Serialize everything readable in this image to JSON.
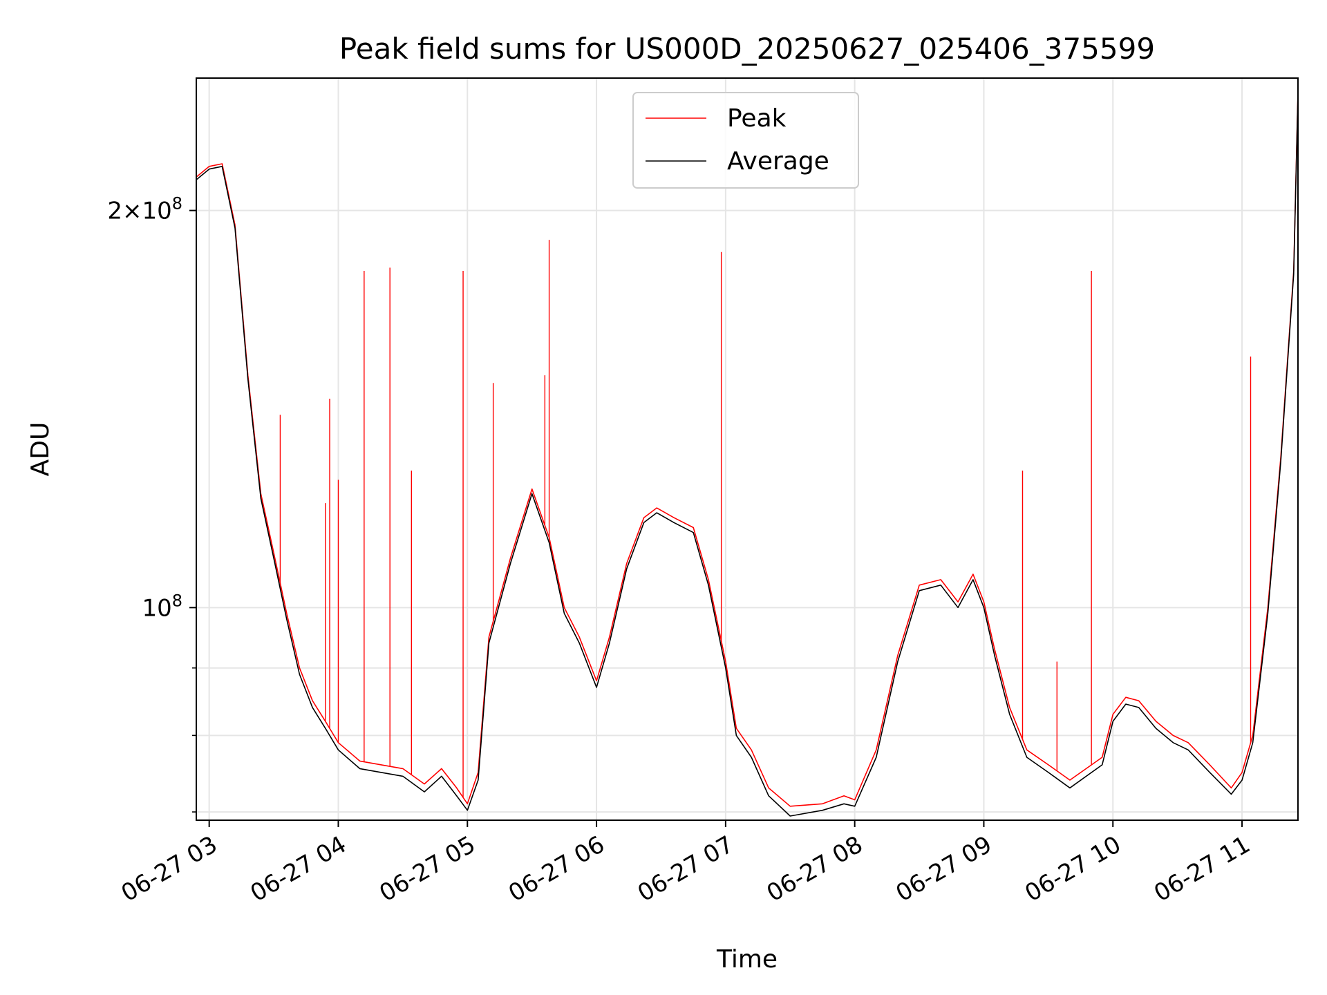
{
  "chart_data": {
    "type": "line",
    "title": "Peak field sums for US000D_20250627_025406_375599",
    "xlabel": "Time",
    "ylabel": "ADU",
    "x_scale": "time",
    "y_scale": "log",
    "xlim": [
      "06-27 02:54",
      "06-27 11:26"
    ],
    "ylim": [
      69000000,
      252000000
    ],
    "x_ticks": [
      "06-27 03:00",
      "06-27 04:00",
      "06-27 05:00",
      "06-27 06:00",
      "06-27 07:00",
      "06-27 08:00",
      "06-27 09:00",
      "06-27 10:00",
      "06-27 11:00"
    ],
    "x_tick_labels": [
      "06-27 03",
      "06-27 04",
      "06-27 05",
      "06-27 06",
      "06-27 07",
      "06-27 08",
      "06-27 09",
      "06-27 10",
      "06-27 11"
    ],
    "y_major_ticks": [
      100000000,
      200000000
    ],
    "y_tick_labels": [
      {
        "mantissa": "",
        "exponent": "8"
      },
      {
        "mantissa": "2",
        "exponent": "8"
      }
    ],
    "y_minor_ticks": [
      70000000,
      80000000,
      90000000
    ],
    "grid": true,
    "legend_position": "upper center",
    "series": [
      {
        "name": "Peak",
        "color": "#ff0000",
        "points": [
          [
            "06-27 02:54",
            212000000
          ],
          [
            "06-27 03:00",
            216000000
          ],
          [
            "06-27 03:06",
            217000000
          ],
          [
            "06-27 03:12",
            195000000
          ],
          [
            "06-27 03:18",
            150000000
          ],
          [
            "06-27 03:24",
            122000000
          ],
          [
            "06-27 03:30",
            110000000
          ],
          [
            "06-27 03:36",
            99000000
          ],
          [
            "06-27 03:42",
            90000000
          ],
          [
            "06-27 03:48",
            85000000
          ],
          [
            "06-27 03:54",
            82000000
          ],
          [
            "06-27 04:00",
            79000000
          ],
          [
            "06-27 04:10",
            76500000
          ],
          [
            "06-27 04:20",
            76000000
          ],
          [
            "06-27 04:30",
            75500000
          ],
          [
            "06-27 04:40",
            73500000
          ],
          [
            "06-27 04:48",
            75500000
          ],
          [
            "06-27 04:55",
            73000000
          ],
          [
            "06-27 05:00",
            71000000
          ],
          [
            "06-27 05:05",
            75000000
          ],
          [
            "06-27 05:10",
            95000000
          ],
          [
            "06-27 05:20",
            109000000
          ],
          [
            "06-27 05:30",
            123000000
          ],
          [
            "06-27 05:38",
            113000000
          ],
          [
            "06-27 05:45",
            100000000
          ],
          [
            "06-27 05:52",
            95000000
          ],
          [
            "06-27 06:00",
            88000000
          ],
          [
            "06-27 06:06",
            95000000
          ],
          [
            "06-27 06:14",
            108000000
          ],
          [
            "06-27 06:22",
            117000000
          ],
          [
            "06-27 06:28",
            119000000
          ],
          [
            "06-27 06:36",
            117000000
          ],
          [
            "06-27 06:45",
            115000000
          ],
          [
            "06-27 06:52",
            105000000
          ],
          [
            "06-27 07:00",
            91000000
          ],
          [
            "06-27 07:05",
            81000000
          ],
          [
            "06-27 07:12",
            78000000
          ],
          [
            "06-27 07:20",
            73000000
          ],
          [
            "06-27 07:30",
            70700000
          ],
          [
            "06-27 07:45",
            71000000
          ],
          [
            "06-27 07:55",
            72000000
          ],
          [
            "06-27 08:00",
            71500000
          ],
          [
            "06-27 08:10",
            78000000
          ],
          [
            "06-27 08:20",
            92000000
          ],
          [
            "06-27 08:30",
            104000000
          ],
          [
            "06-27 08:40",
            105000000
          ],
          [
            "06-27 08:48",
            101000000
          ],
          [
            "06-27 08:55",
            106000000
          ],
          [
            "06-27 09:00",
            101000000
          ],
          [
            "06-27 09:05",
            93000000
          ],
          [
            "06-27 09:12",
            84000000
          ],
          [
            "06-27 09:20",
            78000000
          ],
          [
            "06-27 09:30",
            76000000
          ],
          [
            "06-27 09:40",
            74000000
          ],
          [
            "06-27 09:55",
            77000000
          ],
          [
            "06-27 10:00",
            83000000
          ],
          [
            "06-27 10:06",
            85500000
          ],
          [
            "06-27 10:12",
            85000000
          ],
          [
            "06-27 10:20",
            82000000
          ],
          [
            "06-27 10:28",
            80000000
          ],
          [
            "06-27 10:35",
            79000000
          ],
          [
            "06-27 10:45",
            76000000
          ],
          [
            "06-27 10:55",
            73000000
          ],
          [
            "06-27 11:00",
            75000000
          ],
          [
            "06-27 11:05",
            80000000
          ],
          [
            "06-27 11:12",
            100000000
          ],
          [
            "06-27 11:18",
            130000000
          ],
          [
            "06-27 11:24",
            180000000
          ],
          [
            "06-27 11:26",
            246000000
          ]
        ],
        "spikes": [
          [
            "06-27 03:33",
            140000000
          ],
          [
            "06-27 03:54",
            120000000
          ],
          [
            "06-27 03:56",
            144000000
          ],
          [
            "06-27 04:00",
            125000000
          ],
          [
            "06-27 04:12",
            180000000
          ],
          [
            "06-27 04:24",
            181000000
          ],
          [
            "06-27 04:34",
            127000000
          ],
          [
            "06-27 04:58",
            180000000
          ],
          [
            "06-27 05:12",
            148000000
          ],
          [
            "06-27 05:36",
            150000000
          ],
          [
            "06-27 05:38",
            190000000
          ],
          [
            "06-27 06:58",
            186000000
          ],
          [
            "06-27 09:18",
            127000000
          ],
          [
            "06-27 09:34",
            91000000
          ],
          [
            "06-27 09:50",
            180000000
          ],
          [
            "06-27 11:04",
            155000000
          ]
        ]
      },
      {
        "name": "Average",
        "color": "#000000",
        "points": [
          [
            "06-27 02:54",
            211000000
          ],
          [
            "06-27 03:00",
            215000000
          ],
          [
            "06-27 03:06",
            216000000
          ],
          [
            "06-27 03:12",
            194000000
          ],
          [
            "06-27 03:18",
            149000000
          ],
          [
            "06-27 03:24",
            121000000
          ],
          [
            "06-27 03:30",
            109000000
          ],
          [
            "06-27 03:36",
            98000000
          ],
          [
            "06-27 03:42",
            89000000
          ],
          [
            "06-27 03:48",
            84000000
          ],
          [
            "06-27 03:54",
            81000000
          ],
          [
            "06-27 04:00",
            78000000
          ],
          [
            "06-27 04:10",
            75500000
          ],
          [
            "06-27 04:20",
            75000000
          ],
          [
            "06-27 04:30",
            74500000
          ],
          [
            "06-27 04:40",
            72500000
          ],
          [
            "06-27 04:48",
            74500000
          ],
          [
            "06-27 04:55",
            72000000
          ],
          [
            "06-27 05:00",
            70200000
          ],
          [
            "06-27 05:05",
            74000000
          ],
          [
            "06-27 05:10",
            94000000
          ],
          [
            "06-27 05:20",
            108000000
          ],
          [
            "06-27 05:30",
            122000000
          ],
          [
            "06-27 05:38",
            112000000
          ],
          [
            "06-27 05:45",
            99000000
          ],
          [
            "06-27 05:52",
            94000000
          ],
          [
            "06-27 06:00",
            87000000
          ],
          [
            "06-27 06:06",
            94000000
          ],
          [
            "06-27 06:14",
            107000000
          ],
          [
            "06-27 06:22",
            116000000
          ],
          [
            "06-27 06:28",
            118000000
          ],
          [
            "06-27 06:36",
            116000000
          ],
          [
            "06-27 06:45",
            114000000
          ],
          [
            "06-27 06:52",
            104000000
          ],
          [
            "06-27 07:00",
            90000000
          ],
          [
            "06-27 07:05",
            80000000
          ],
          [
            "06-27 07:12",
            77000000
          ],
          [
            "06-27 07:20",
            72000000
          ],
          [
            "06-27 07:30",
            69500000
          ],
          [
            "06-27 07:45",
            70200000
          ],
          [
            "06-27 07:55",
            71000000
          ],
          [
            "06-27 08:00",
            70700000
          ],
          [
            "06-27 08:10",
            77000000
          ],
          [
            "06-27 08:20",
            91000000
          ],
          [
            "06-27 08:30",
            103000000
          ],
          [
            "06-27 08:40",
            104000000
          ],
          [
            "06-27 08:48",
            100000000
          ],
          [
            "06-27 08:55",
            105000000
          ],
          [
            "06-27 09:00",
            100000000
          ],
          [
            "06-27 09:05",
            92000000
          ],
          [
            "06-27 09:12",
            83000000
          ],
          [
            "06-27 09:20",
            77000000
          ],
          [
            "06-27 09:30",
            75000000
          ],
          [
            "06-27 09:40",
            73000000
          ],
          [
            "06-27 09:55",
            76000000
          ],
          [
            "06-27 10:00",
            82000000
          ],
          [
            "06-27 10:06",
            84500000
          ],
          [
            "06-27 10:12",
            84000000
          ],
          [
            "06-27 10:20",
            81000000
          ],
          [
            "06-27 10:28",
            79000000
          ],
          [
            "06-27 10:35",
            78000000
          ],
          [
            "06-27 10:45",
            75000000
          ],
          [
            "06-27 10:55",
            72200000
          ],
          [
            "06-27 11:00",
            74000000
          ],
          [
            "06-27 11:05",
            79000000
          ],
          [
            "06-27 11:12",
            99000000
          ],
          [
            "06-27 11:18",
            129000000
          ],
          [
            "06-27 11:24",
            179000000
          ],
          [
            "06-27 11:26",
            245000000
          ]
        ]
      }
    ]
  }
}
